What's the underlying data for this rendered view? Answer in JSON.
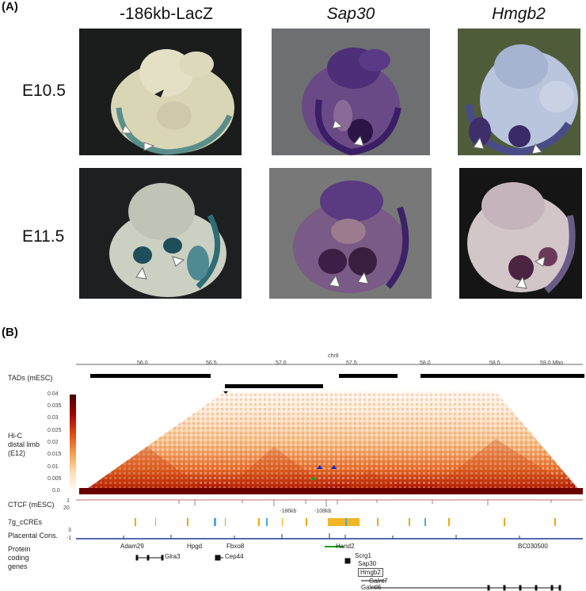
{
  "panelA": {
    "label": "(A)",
    "columns": [
      "-186kb-LacZ",
      "Sap30",
      "Hmgb2"
    ],
    "rows": [
      "E10.5",
      "E11.5"
    ]
  },
  "panelB": {
    "label": "(B)",
    "chrom": "chr8",
    "ticks": [
      "56.0",
      "56.5",
      "57.0",
      "57.5",
      "58.0",
      "58.5",
      "59.0 Mbo"
    ],
    "tracks": {
      "tads": "TADs (mESC)",
      "hic": "Hi-C\ndistal limb\n(E12)",
      "ctcf": "CTCF (mESC)",
      "ccres": "7g_cCREs",
      "placental": "Placental Cons.",
      "protein": "Protein\ncoding\ngenes"
    },
    "colorbar": [
      "0.04",
      "0.035",
      "0.03",
      "0.025",
      "0.02",
      "0.015",
      "0.01",
      "0.005",
      "0.0"
    ],
    "ctcf_scale": [
      "1",
      "20"
    ],
    "cons_scale": [
      "3",
      "-1"
    ],
    "annotations": [
      "-186kb",
      "-108kb"
    ],
    "genes": [
      "Adam29",
      "Hpgd",
      "Fbxo8",
      "Glra3",
      "Cep44",
      "Hand2",
      "Scrg1",
      "Sap30",
      "Hmgb2",
      "Galnt7",
      "Galntl6",
      "BC030500"
    ]
  }
}
